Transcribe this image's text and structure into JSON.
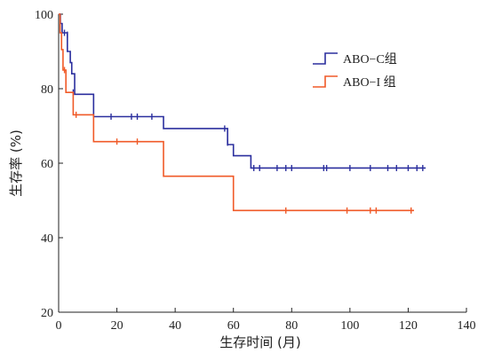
{
  "chart_data": {
    "type": "line",
    "subtype": "kaplan-meier survival curve",
    "xlabel": "生存时间 (月)",
    "ylabel": "生存率 (%)",
    "xlim": [
      0,
      140
    ],
    "ylim": [
      20,
      100
    ],
    "xticks": [
      0,
      20,
      40,
      60,
      80,
      100,
      120,
      140
    ],
    "yticks": [
      20,
      40,
      60,
      80,
      100
    ],
    "grid": false,
    "legend_position": "top-right",
    "series": [
      {
        "name": "ABO−C组",
        "color": "#2b2f9e",
        "steps": [
          [
            0,
            100
          ],
          [
            0.6,
            97.5
          ],
          [
            1.2,
            95
          ],
          [
            3,
            90
          ],
          [
            4,
            87
          ],
          [
            4.5,
            84
          ],
          [
            5.5,
            78.5
          ],
          [
            12,
            72.5
          ],
          [
            36,
            69.3
          ],
          [
            58,
            65
          ],
          [
            60,
            62
          ],
          [
            66,
            58.7
          ],
          [
            126,
            58.7
          ]
        ],
        "censored": [
          [
            2,
            95
          ],
          [
            3,
            94.5
          ],
          [
            5,
            79
          ],
          [
            18,
            72.5
          ],
          [
            25,
            72.5
          ],
          [
            27,
            72.5
          ],
          [
            32,
            72.5
          ],
          [
            57,
            69.3
          ],
          [
            58,
            65.5
          ],
          [
            67,
            58.7
          ],
          [
            69,
            58.7
          ],
          [
            75,
            58.7
          ],
          [
            78,
            58.7
          ],
          [
            80,
            58.7
          ],
          [
            91,
            58.7
          ],
          [
            92,
            58.7
          ],
          [
            100,
            58.7
          ],
          [
            107,
            58.7
          ],
          [
            113,
            58.7
          ],
          [
            116,
            58.7
          ],
          [
            120,
            58.7
          ],
          [
            123,
            58.7
          ],
          [
            125,
            58.7
          ]
        ]
      },
      {
        "name": "ABO−I 组",
        "color": "#f05a28",
        "steps": [
          [
            0,
            100
          ],
          [
            0.5,
            95
          ],
          [
            1,
            90.5
          ],
          [
            1.5,
            85
          ],
          [
            2.5,
            79
          ],
          [
            5,
            73
          ],
          [
            12,
            65.8
          ],
          [
            36,
            56.5
          ],
          [
            60,
            47.3
          ],
          [
            122,
            47.3
          ]
        ],
        "censored": [
          [
            2,
            85
          ],
          [
            6,
            73
          ],
          [
            20,
            65.8
          ],
          [
            27,
            65.8
          ],
          [
            78,
            47.3
          ],
          [
            99,
            47.3
          ],
          [
            107,
            47.3
          ],
          [
            109,
            47.3
          ],
          [
            121,
            47.3
          ]
        ]
      }
    ]
  }
}
